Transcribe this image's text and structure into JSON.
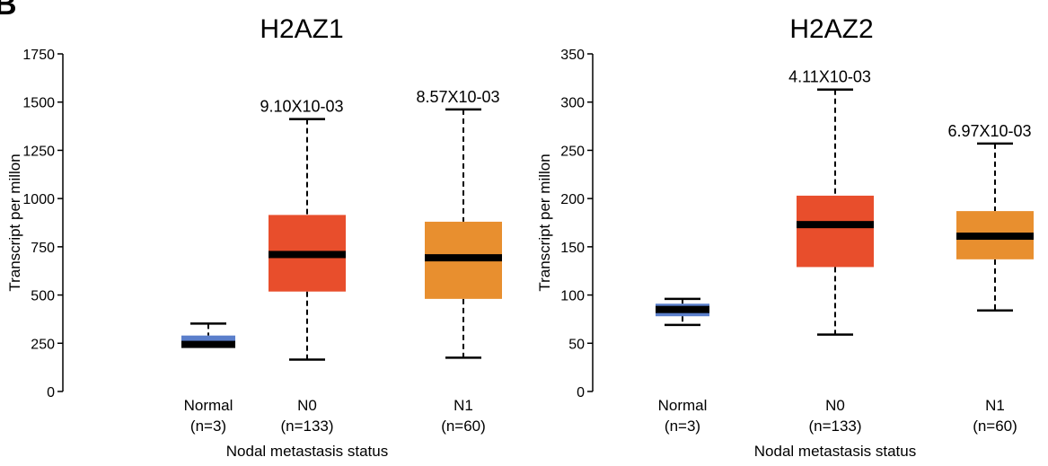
{
  "panel_label": "B",
  "chart_data": [
    {
      "type": "box",
      "title": "H2AZ1",
      "xlabel": "Nodal metastasis status",
      "ylabel": "Transcript per millon",
      "ylim": [
        0,
        1750
      ],
      "yticks": [
        0,
        250,
        500,
        750,
        1000,
        1250,
        1500,
        1750
      ],
      "categories": [
        {
          "name": "Normal",
          "n": "(n=3)"
        },
        {
          "name": "N0",
          "n": "(n=133)"
        },
        {
          "name": "N1",
          "n": "(n=60)"
        }
      ],
      "boxes": [
        {
          "min": 232,
          "q1": 232,
          "median": 244,
          "q3": 290,
          "max": 352,
          "color": "#5b7fcb",
          "pvalue": ""
        },
        {
          "min": 165,
          "q1": 518,
          "median": 710,
          "q3": 915,
          "max": 1412,
          "color": "#e84e2c",
          "pvalue": "9.10X10-03"
        },
        {
          "min": 175,
          "q1": 480,
          "median": 693,
          "q3": 880,
          "max": 1462,
          "color": "#e88f2f",
          "pvalue": "8.57X10-03"
        }
      ]
    },
    {
      "type": "box",
      "title": "H2AZ2",
      "xlabel": "Nodal metastasis status",
      "ylabel": "Transcript per millon",
      "ylim": [
        0,
        350
      ],
      "yticks": [
        0,
        50,
        100,
        150,
        200,
        250,
        300,
        350
      ],
      "categories": [
        {
          "name": "Normal",
          "n": "(n=3)"
        },
        {
          "name": "N0",
          "n": "(n=133)"
        },
        {
          "name": "N1",
          "n": "(n=60)"
        }
      ],
      "boxes": [
        {
          "min": 69,
          "q1": 78,
          "median": 85,
          "q3": 91,
          "max": 96,
          "color": "#5b7fcb",
          "pvalue": ""
        },
        {
          "min": 59,
          "q1": 129,
          "median": 173,
          "q3": 203,
          "max": 313,
          "color": "#e84e2c",
          "pvalue": "4.11X10-03"
        },
        {
          "min": 84,
          "q1": 137,
          "median": 161,
          "q3": 187,
          "max": 257,
          "color": "#e88f2f",
          "pvalue": "6.97X10-03"
        }
      ]
    }
  ]
}
